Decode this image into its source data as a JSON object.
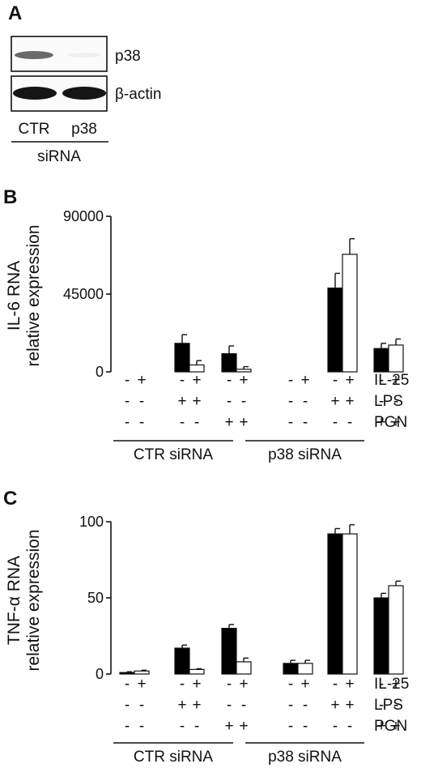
{
  "panel_a": {
    "label": "A",
    "bands": [
      "p38",
      "β-actin"
    ],
    "lanes": [
      "CTR",
      "p38"
    ],
    "group": "siRNA"
  },
  "panel_b": {
    "label": "B"
  },
  "panel_c": {
    "label": "C"
  },
  "chart_data": [
    {
      "type": "bar",
      "panel": "B",
      "ylabel": [
        "IL-6 RNA",
        "relative expression"
      ],
      "ylim": [
        0,
        90000
      ],
      "yticks": [
        "0",
        "45000",
        "90000"
      ],
      "conditions": {
        "IL-25": [
          "-",
          "+",
          "-",
          "+",
          "-",
          "+",
          "-",
          "+",
          "-",
          "+",
          "-",
          "+"
        ],
        "LPS": [
          "-",
          "-",
          "+",
          "+",
          "-",
          "-",
          "-",
          "-",
          "+",
          "+",
          "-",
          "-"
        ],
        "PGN": [
          "-",
          "-",
          "-",
          "-",
          "+",
          "+",
          "-",
          "-",
          "-",
          "-",
          "+",
          "+"
        ]
      },
      "condition_names": [
        "IL-25",
        "LPS",
        "PGN"
      ],
      "groups": [
        "CTR siRNA",
        "p38 siRNA"
      ],
      "series": [
        {
          "color": "#000000",
          "values": [
            0,
            16500,
            10500,
            0,
            48500,
            13500
          ],
          "errors": [
            0,
            5000,
            4500,
            0,
            8500,
            3000
          ]
        },
        {
          "color": "#ffffff",
          "values": [
            0,
            4000,
            1500,
            0,
            68000,
            15500
          ],
          "errors": [
            0,
            2500,
            1500,
            0,
            9000,
            3500
          ]
        }
      ]
    },
    {
      "type": "bar",
      "panel": "C",
      "ylabel": [
        "TNF-α RNA",
        "relative expression"
      ],
      "ylim": [
        0,
        100
      ],
      "yticks": [
        "0",
        "50",
        "100"
      ],
      "conditions": {
        "IL-25": [
          "-",
          "+",
          "-",
          "+",
          "-",
          "+",
          "-",
          "+",
          "-",
          "+",
          "-",
          "+"
        ],
        "LPS": [
          "-",
          "-",
          "+",
          "+",
          "-",
          "-",
          "-",
          "-",
          "+",
          "+",
          "-",
          "-"
        ],
        "PGN": [
          "-",
          "-",
          "-",
          "-",
          "+",
          "+",
          "-",
          "-",
          "-",
          "-",
          "+",
          "+"
        ]
      },
      "condition_names": [
        "IL-25",
        "LPS",
        "PGN"
      ],
      "groups": [
        "CTR siRNA",
        "p38 siRNA"
      ],
      "series": [
        {
          "color": "#000000",
          "values": [
            1,
            17,
            30,
            7,
            92,
            50
          ],
          "errors": [
            0.5,
            2,
            2.5,
            2,
            3.5,
            3
          ]
        },
        {
          "color": "#ffffff",
          "values": [
            2,
            3,
            8,
            7,
            92,
            58
          ],
          "errors": [
            0.5,
            0.5,
            2.5,
            2,
            6,
            3
          ]
        }
      ]
    }
  ]
}
